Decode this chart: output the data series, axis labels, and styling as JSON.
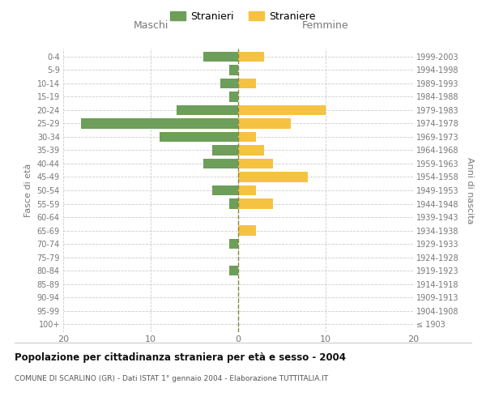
{
  "age_groups": [
    "100+",
    "95-99",
    "90-94",
    "85-89",
    "80-84",
    "75-79",
    "70-74",
    "65-69",
    "60-64",
    "55-59",
    "50-54",
    "45-49",
    "40-44",
    "35-39",
    "30-34",
    "25-29",
    "20-24",
    "15-19",
    "10-14",
    "5-9",
    "0-4"
  ],
  "birth_years": [
    "≤ 1903",
    "1904-1908",
    "1909-1913",
    "1914-1918",
    "1919-1923",
    "1924-1928",
    "1929-1933",
    "1934-1938",
    "1939-1943",
    "1944-1948",
    "1949-1953",
    "1954-1958",
    "1959-1963",
    "1964-1968",
    "1969-1973",
    "1974-1978",
    "1979-1983",
    "1984-1988",
    "1989-1993",
    "1994-1998",
    "1999-2003"
  ],
  "maschi": [
    0,
    0,
    0,
    0,
    1,
    0,
    1,
    0,
    0,
    1,
    3,
    0,
    4,
    3,
    9,
    18,
    7,
    1,
    2,
    1,
    4
  ],
  "femmine": [
    0,
    0,
    0,
    0,
    0,
    0,
    0,
    2,
    0,
    4,
    2,
    8,
    4,
    3,
    2,
    6,
    10,
    0,
    2,
    0,
    3
  ],
  "maschi_color": "#6d9e5a",
  "femmine_color": "#f5c242",
  "background_color": "#ffffff",
  "grid_color": "#cccccc",
  "title": "Popolazione per cittadinanza straniera per età e sesso - 2004",
  "subtitle": "COMUNE DI SCARLINO (GR) - Dati ISTAT 1° gennaio 2004 - Elaborazione TUTTITALIA.IT",
  "ylabel_left": "Fasce di età",
  "ylabel_right": "Anni di nascita",
  "xlabel_left": "Maschi",
  "xlabel_right": "Femmine",
  "legend_maschi": "Stranieri",
  "legend_femmine": "Straniere",
  "xlim": 20,
  "bar_height": 0.75
}
